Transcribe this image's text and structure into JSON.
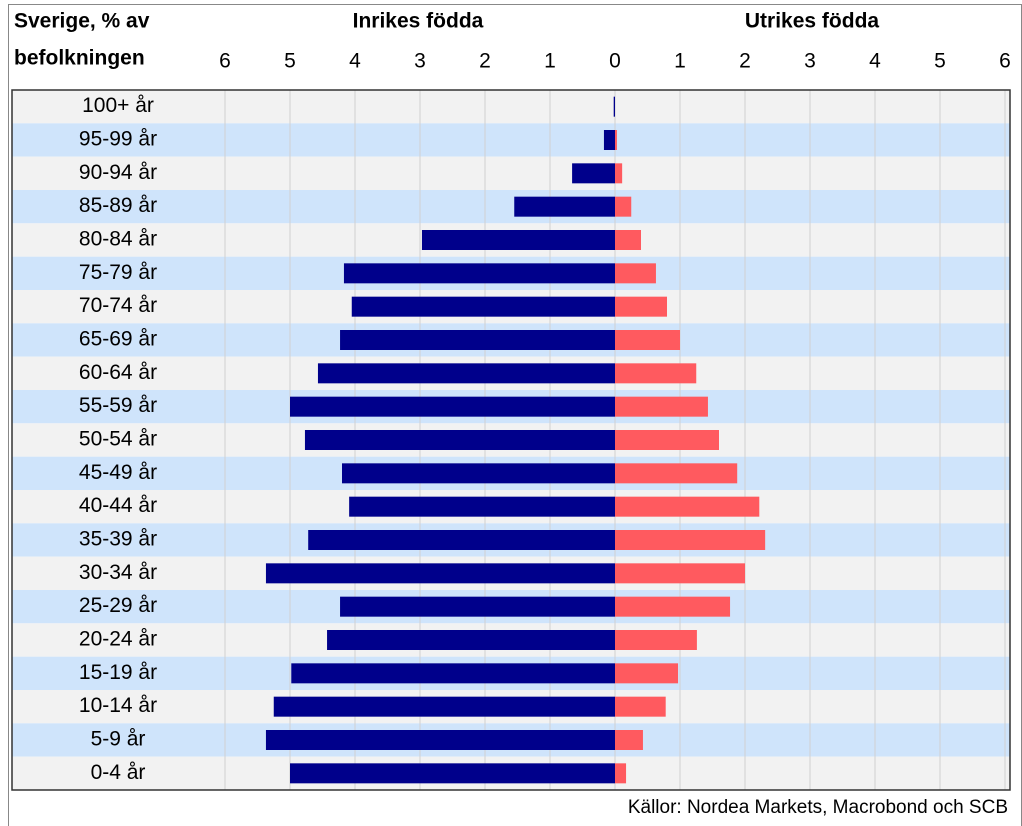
{
  "chart_data": {
    "type": "pyramid",
    "title": [
      "Sverige, % av",
      "befolkningen"
    ],
    "source": "Källor: Nordea Markets, Macrobond och SCB",
    "categories": [
      "100+ år",
      "95-99 år",
      "90-94 år",
      "85-89 år",
      "80-84 år",
      "75-79 år",
      "70-74 år",
      "65-69 år",
      "60-64 år",
      "55-59 år",
      "50-54 år",
      "45-49 år",
      "40-44 år",
      "35-39 år",
      "30-34 år",
      "25-29 år",
      "20-24 år",
      "15-19 år",
      "10-14 år",
      "5-9 år",
      "0-4 år"
    ],
    "series": [
      {
        "name": "Inrikes födda",
        "color": "#00008b",
        "side": "left",
        "values": [
          0.02,
          0.17,
          0.66,
          1.55,
          2.97,
          4.17,
          4.05,
          4.23,
          4.57,
          5.0,
          4.77,
          4.2,
          4.09,
          4.72,
          5.37,
          4.23,
          4.43,
          4.98,
          5.25,
          5.37,
          5.0
        ]
      },
      {
        "name": "Utrikes födda",
        "color": "#ff5a5f",
        "side": "right",
        "values": [
          0,
          0.03,
          0.11,
          0.25,
          0.4,
          0.63,
          0.8,
          1.0,
          1.25,
          1.43,
          1.6,
          1.88,
          2.22,
          2.31,
          2.0,
          1.77,
          1.26,
          0.97,
          0.78,
          0.43,
          0.17
        ]
      }
    ],
    "xlim": [
      0,
      6
    ],
    "xticks": [
      0,
      1,
      2,
      3,
      4,
      5,
      6
    ],
    "grid": true,
    "row_colors": [
      "#f2f2f2",
      "#cfe4fb"
    ]
  }
}
